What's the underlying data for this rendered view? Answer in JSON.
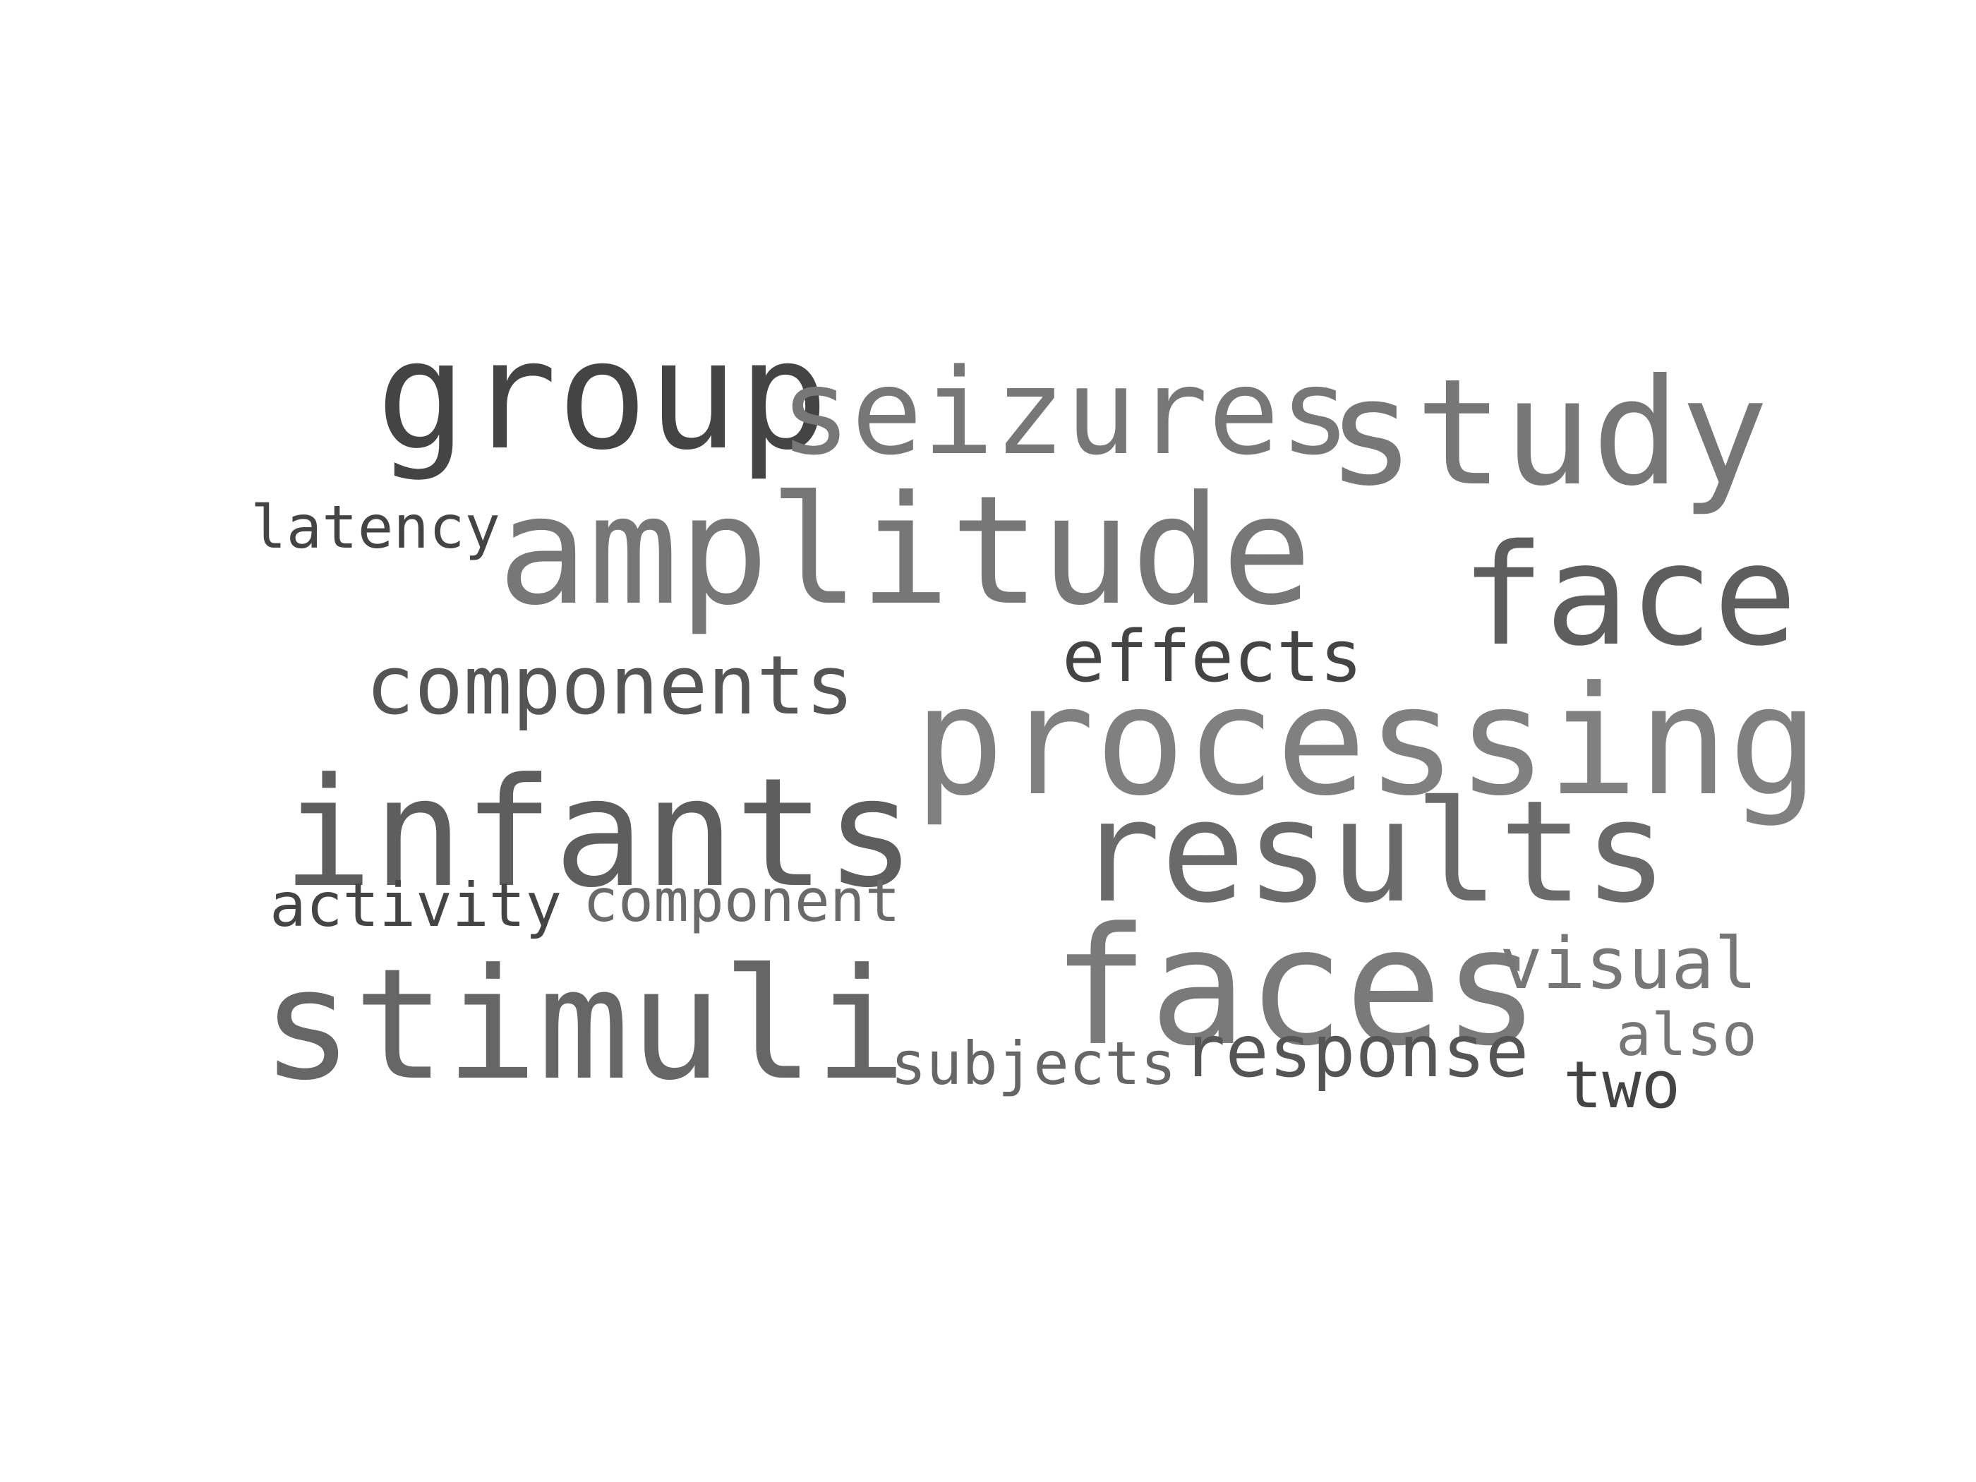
{
  "words": [
    {
      "text": "group",
      "color": "#444444"
    },
    {
      "text": "seizures",
      "color": "#777777"
    },
    {
      "text": "study",
      "color": "#777777"
    },
    {
      "text": "latency",
      "color": "#444444"
    },
    {
      "text": "amplitude",
      "color": "#777777"
    },
    {
      "text": "face",
      "color": "#5e5e5e"
    },
    {
      "text": "effects",
      "color": "#444444"
    },
    {
      "text": "components",
      "color": "#555555"
    },
    {
      "text": "processing",
      "color": "#808080"
    },
    {
      "text": "infants",
      "color": "#5e5e5e"
    },
    {
      "text": "results",
      "color": "#6a6a6a"
    },
    {
      "text": "activity",
      "color": "#444444"
    },
    {
      "text": "component",
      "color": "#6a6a6a"
    },
    {
      "text": "faces",
      "color": "#7a7a7a"
    },
    {
      "text": "visual",
      "color": "#777777"
    },
    {
      "text": "stimuli",
      "color": "#666666"
    },
    {
      "text": "also",
      "color": "#777777"
    },
    {
      "text": "subjects",
      "color": "#666666"
    },
    {
      "text": "response",
      "color": "#555555"
    },
    {
      "text": "two",
      "color": "#444444"
    }
  ]
}
